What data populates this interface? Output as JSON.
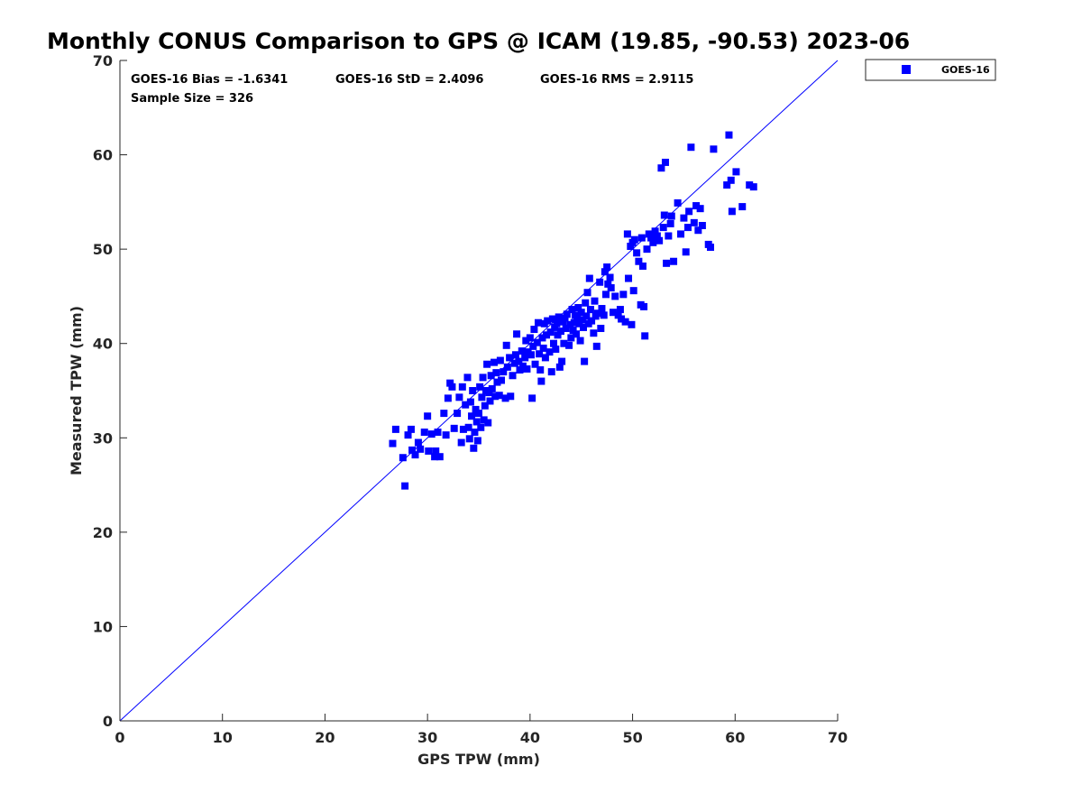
{
  "chart_data": {
    "type": "scatter",
    "title": "Monthly CONUS Comparison to GPS @ ICAM (19.85, -90.53) 2023-06",
    "xlabel": "GPS TPW (mm)",
    "ylabel": "Measured TPW (mm)",
    "xlim": [
      0,
      70
    ],
    "ylim": [
      0,
      70
    ],
    "xticks": [
      0,
      10,
      20,
      30,
      40,
      50,
      60,
      70
    ],
    "yticks": [
      0,
      10,
      20,
      30,
      40,
      50,
      60,
      70
    ],
    "grid": false,
    "legend_position": "outside-top-right",
    "annotations": {
      "bias": "GOES-16 Bias = -1.6341",
      "std": "GOES-16 StD = 2.4096",
      "rms": "GOES-16 RMS = 2.9115",
      "sample": "Sample Size = 326"
    },
    "reference_line": {
      "from": [
        0,
        0
      ],
      "to": [
        70,
        70
      ],
      "color": "#0000ff"
    },
    "series": [
      {
        "name": "GOES-16",
        "color": "#0000ff",
        "marker": "square",
        "points": [
          [
            26.6,
            29.4
          ],
          [
            26.9,
            30.9
          ],
          [
            27.6,
            27.9
          ],
          [
            27.8,
            24.9
          ],
          [
            28.1,
            30.3
          ],
          [
            28.4,
            30.9
          ],
          [
            28.5,
            28.7
          ],
          [
            28.8,
            28.2
          ],
          [
            29.1,
            29.5
          ],
          [
            29.3,
            28.8
          ],
          [
            29.7,
            30.6
          ],
          [
            30.0,
            32.3
          ],
          [
            30.1,
            28.6
          ],
          [
            30.4,
            30.4
          ],
          [
            30.7,
            28.0
          ],
          [
            30.8,
            28.6
          ],
          [
            31.0,
            30.6
          ],
          [
            31.2,
            28.0
          ],
          [
            31.6,
            32.6
          ],
          [
            31.8,
            30.3
          ],
          [
            32.0,
            34.2
          ],
          [
            32.2,
            35.8
          ],
          [
            32.4,
            35.4
          ],
          [
            32.6,
            31.0
          ],
          [
            32.9,
            32.6
          ],
          [
            33.1,
            34.3
          ],
          [
            33.3,
            29.5
          ],
          [
            33.4,
            35.4
          ],
          [
            33.5,
            30.9
          ],
          [
            33.7,
            33.5
          ],
          [
            33.9,
            36.4
          ],
          [
            34.0,
            31.1
          ],
          [
            34.1,
            29.9
          ],
          [
            34.2,
            33.8
          ],
          [
            34.3,
            32.3
          ],
          [
            34.4,
            35.0
          ],
          [
            34.5,
            28.9
          ],
          [
            34.6,
            30.6
          ],
          [
            34.7,
            33.0
          ],
          [
            34.8,
            31.7
          ],
          [
            34.9,
            29.7
          ],
          [
            35.0,
            32.6
          ],
          [
            35.1,
            35.4
          ],
          [
            35.2,
            31.1
          ],
          [
            35.3,
            34.3
          ],
          [
            35.4,
            36.4
          ],
          [
            35.5,
            31.9
          ],
          [
            35.6,
            33.4
          ],
          [
            35.7,
            35.0
          ],
          [
            35.8,
            37.8
          ],
          [
            35.9,
            31.6
          ],
          [
            36.0,
            34.8
          ],
          [
            36.1,
            33.9
          ],
          [
            36.2,
            36.6
          ],
          [
            36.3,
            35.2
          ],
          [
            36.5,
            38.0
          ],
          [
            36.6,
            34.4
          ],
          [
            36.7,
            36.9
          ],
          [
            36.8,
            35.9
          ],
          [
            37.0,
            34.5
          ],
          [
            37.1,
            38.2
          ],
          [
            37.2,
            36.1
          ],
          [
            37.4,
            37.0
          ],
          [
            37.6,
            34.2
          ],
          [
            37.7,
            39.8
          ],
          [
            37.8,
            37.5
          ],
          [
            38.0,
            38.5
          ],
          [
            38.1,
            34.4
          ],
          [
            38.3,
            36.6
          ],
          [
            38.5,
            37.9
          ],
          [
            38.6,
            38.8
          ],
          [
            38.7,
            41.0
          ],
          [
            38.9,
            38.1
          ],
          [
            39.0,
            37.2
          ],
          [
            39.2,
            39.2
          ],
          [
            39.3,
            37.6
          ],
          [
            39.5,
            38.5
          ],
          [
            39.6,
            40.3
          ],
          [
            39.7,
            37.3
          ],
          [
            39.8,
            39.1
          ],
          [
            40.0,
            40.6
          ],
          [
            40.1,
            38.8
          ],
          [
            40.2,
            34.2
          ],
          [
            40.3,
            39.7
          ],
          [
            40.4,
            41.5
          ],
          [
            40.5,
            37.8
          ],
          [
            40.7,
            40.1
          ],
          [
            40.8,
            42.2
          ],
          [
            40.9,
            38.9
          ],
          [
            41.0,
            37.2
          ],
          [
            41.1,
            36.0
          ],
          [
            41.2,
            40.6
          ],
          [
            41.3,
            39.5
          ],
          [
            41.4,
            42.1
          ],
          [
            41.5,
            38.5
          ],
          [
            41.6,
            40.9
          ],
          [
            41.7,
            42.4
          ],
          [
            41.9,
            39.1
          ],
          [
            42.0,
            41.2
          ],
          [
            42.1,
            37.0
          ],
          [
            42.2,
            42.6
          ],
          [
            42.3,
            40.0
          ],
          [
            42.4,
            41.7
          ],
          [
            42.5,
            39.4
          ],
          [
            42.6,
            42.1
          ],
          [
            42.7,
            40.9
          ],
          [
            42.8,
            42.8
          ],
          [
            42.9,
            37.5
          ],
          [
            43.0,
            41.3
          ],
          [
            43.1,
            38.1
          ],
          [
            43.2,
            42.3
          ],
          [
            43.3,
            40.0
          ],
          [
            43.4,
            42.7
          ],
          [
            43.5,
            41.6
          ],
          [
            43.6,
            43.1
          ],
          [
            43.8,
            39.8
          ],
          [
            43.9,
            42.0
          ],
          [
            44.0,
            40.6
          ],
          [
            44.1,
            43.6
          ],
          [
            44.2,
            41.4
          ],
          [
            44.3,
            42.2
          ],
          [
            44.4,
            43.0
          ],
          [
            44.5,
            41.0
          ],
          [
            44.6,
            42.7
          ],
          [
            44.7,
            43.8
          ],
          [
            44.8,
            42.1
          ],
          [
            44.9,
            40.3
          ],
          [
            45.0,
            43.3
          ],
          [
            45.1,
            42.5
          ],
          [
            45.2,
            41.7
          ],
          [
            45.3,
            38.1
          ],
          [
            45.4,
            44.3
          ],
          [
            45.5,
            42.9
          ],
          [
            45.6,
            45.4
          ],
          [
            45.7,
            42.1
          ],
          [
            45.8,
            46.9
          ],
          [
            45.9,
            43.6
          ],
          [
            46.0,
            42.4
          ],
          [
            46.2,
            41.1
          ],
          [
            46.3,
            44.5
          ],
          [
            46.4,
            42.9
          ],
          [
            46.5,
            39.7
          ],
          [
            46.6,
            43.2
          ],
          [
            46.8,
            46.5
          ],
          [
            46.9,
            41.6
          ],
          [
            47.0,
            43.7
          ],
          [
            47.2,
            43.0
          ],
          [
            47.3,
            47.6
          ],
          [
            47.4,
            45.2
          ],
          [
            47.5,
            48.1
          ],
          [
            47.6,
            46.3
          ],
          [
            47.8,
            47.0
          ],
          [
            47.9,
            45.9
          ],
          [
            48.1,
            43.3
          ],
          [
            48.3,
            45.0
          ],
          [
            48.6,
            43.0
          ],
          [
            48.8,
            43.6
          ],
          [
            48.9,
            42.6
          ],
          [
            49.1,
            45.2
          ],
          [
            49.3,
            42.3
          ],
          [
            49.5,
            51.6
          ],
          [
            49.6,
            46.9
          ],
          [
            49.8,
            50.3
          ],
          [
            49.9,
            42.0
          ],
          [
            50.0,
            50.7
          ],
          [
            50.1,
            45.6
          ],
          [
            50.2,
            51.0
          ],
          [
            50.4,
            49.6
          ],
          [
            50.6,
            48.7
          ],
          [
            50.8,
            44.1
          ],
          [
            50.9,
            51.2
          ],
          [
            51.0,
            48.2
          ],
          [
            51.1,
            43.9
          ],
          [
            51.2,
            40.8
          ],
          [
            51.4,
            50.0
          ],
          [
            51.6,
            51.6
          ],
          [
            51.8,
            51.2
          ],
          [
            52.0,
            50.7
          ],
          [
            52.2,
            51.9
          ],
          [
            52.4,
            51.4
          ],
          [
            52.6,
            50.9
          ],
          [
            52.8,
            58.6
          ],
          [
            53.0,
            52.3
          ],
          [
            53.1,
            53.6
          ],
          [
            53.2,
            59.2
          ],
          [
            53.3,
            48.5
          ],
          [
            53.5,
            51.4
          ],
          [
            53.7,
            52.7
          ],
          [
            53.8,
            53.5
          ],
          [
            54.0,
            48.7
          ],
          [
            54.4,
            54.9
          ],
          [
            54.7,
            51.6
          ],
          [
            55.0,
            53.3
          ],
          [
            55.2,
            49.7
          ],
          [
            55.4,
            52.3
          ],
          [
            55.5,
            54.0
          ],
          [
            55.7,
            60.8
          ],
          [
            56.0,
            52.8
          ],
          [
            56.2,
            54.6
          ],
          [
            56.4,
            52.0
          ],
          [
            56.6,
            54.3
          ],
          [
            56.8,
            52.5
          ],
          [
            57.4,
            50.5
          ],
          [
            57.6,
            50.2
          ],
          [
            57.9,
            60.6
          ],
          [
            59.4,
            62.1
          ],
          [
            59.2,
            56.8
          ],
          [
            59.6,
            57.3
          ],
          [
            59.7,
            54.0
          ],
          [
            60.1,
            58.2
          ],
          [
            60.7,
            54.5
          ],
          [
            61.4,
            56.8
          ],
          [
            61.8,
            56.6
          ]
        ]
      }
    ]
  }
}
